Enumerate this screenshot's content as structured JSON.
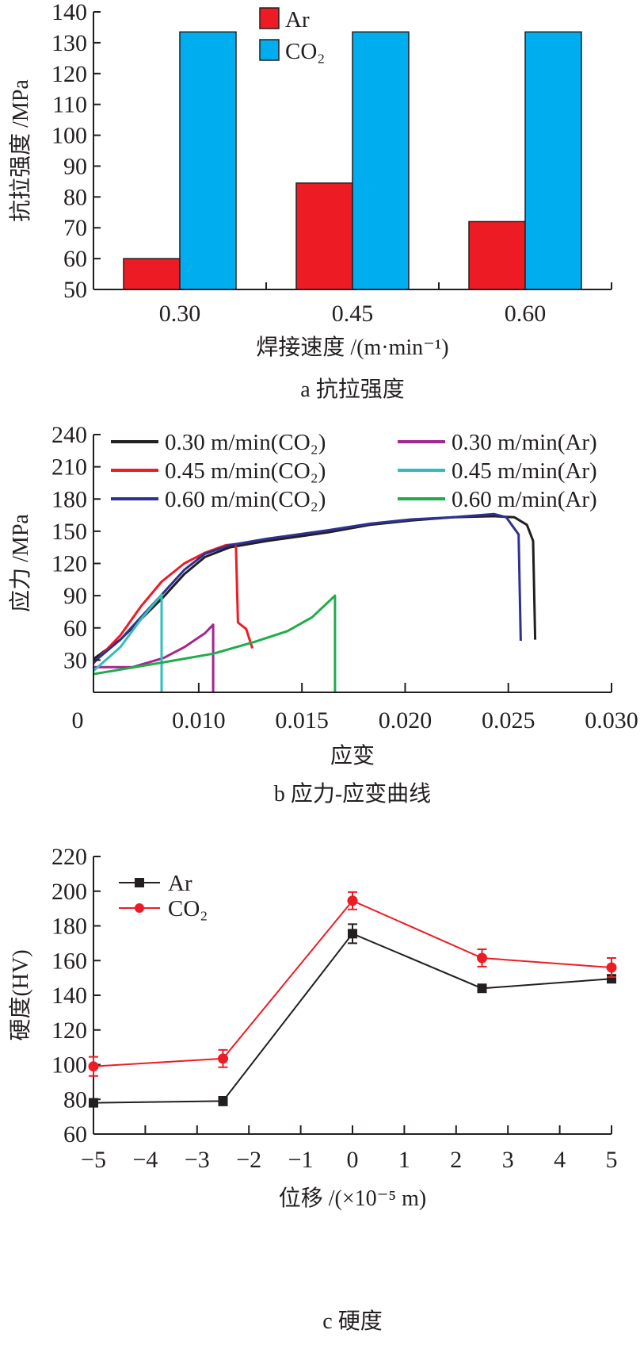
{
  "colors": {
    "ar_bar": "#ed1c24",
    "co2_bar": "#00aeef",
    "axis": "#231f20"
  },
  "chart_data": [
    {
      "type": "bar",
      "caption": "a 抗拉强度",
      "xlabel": "焊接速度 /(m·min⁻¹)",
      "ylabel": "抗拉强度 /MPa",
      "categories": [
        "0.30",
        "0.45",
        "0.60"
      ],
      "ylim": [
        50,
        140
      ],
      "yticks": [
        50,
        60,
        70,
        80,
        90,
        100,
        110,
        120,
        130,
        140
      ],
      "legend_position": "top-center",
      "series": [
        {
          "name": "Ar",
          "color": "#ed1c24",
          "values": [
            60,
            84.5,
            72
          ]
        },
        {
          "name": "CO₂",
          "color": "#00aeef",
          "values": [
            133.5,
            133.5,
            133.5
          ]
        }
      ]
    },
    {
      "type": "line",
      "caption": "b 应力-应变曲线",
      "xlabel": "应变",
      "ylabel": "应力 /MPa",
      "xlim": [
        0.0049,
        0.03
      ],
      "ylim": [
        0,
        240
      ],
      "xticks": [
        0.0049,
        0.01,
        0.015,
        0.02,
        0.025,
        0.03
      ],
      "xtick_labels": [
        "0",
        "0.010",
        "0.015",
        "0.020",
        "0.025",
        "0.030"
      ],
      "yticks": [
        30,
        60,
        90,
        120,
        150,
        180,
        210,
        240
      ],
      "legend_position": "top",
      "series": [
        {
          "name": "0.30 m/min(CO₂)",
          "color": "#231f20",
          "points": [
            [
              0.0049,
              31
            ],
            [
              0.0062,
              49
            ],
            [
              0.0083,
              89
            ],
            [
              0.0093,
              110
            ],
            [
              0.0103,
              126
            ],
            [
              0.0115,
              135
            ],
            [
              0.0133,
              141
            ],
            [
              0.0163,
              149
            ],
            [
              0.0183,
              156
            ],
            [
              0.0203,
              160
            ],
            [
              0.0223,
              163
            ],
            [
              0.0243,
              164
            ],
            [
              0.0253,
              163
            ],
            [
              0.0259,
              156
            ],
            [
              0.0262,
              141
            ],
            [
              0.0263,
              49
            ]
          ]
        },
        {
          "name": "0.45 m/min(CO₂)",
          "color": "#ed1c24",
          "points": [
            [
              0.0049,
              27
            ],
            [
              0.0062,
              53
            ],
            [
              0.0072,
              80
            ],
            [
              0.0082,
              103
            ],
            [
              0.0093,
              120
            ],
            [
              0.0103,
              130
            ],
            [
              0.0113,
              137
            ],
            [
              0.0118,
              138
            ],
            [
              0.0119,
              65
            ],
            [
              0.0123,
              59
            ],
            [
              0.0126,
              41
            ]
          ]
        },
        {
          "name": "0.60 m/min(CO₂)",
          "color": "#2e3192",
          "points": [
            [
              0.0049,
              28
            ],
            [
              0.0062,
              49
            ],
            [
              0.0083,
              93
            ],
            [
              0.0093,
              114
            ],
            [
              0.0103,
              129
            ],
            [
              0.0115,
              137
            ],
            [
              0.0133,
              143
            ],
            [
              0.0163,
              151
            ],
            [
              0.0183,
              157
            ],
            [
              0.0203,
              161
            ],
            [
              0.0223,
              163
            ],
            [
              0.0243,
              166
            ],
            [
              0.0249,
              163
            ],
            [
              0.0255,
              147
            ],
            [
              0.0256,
              48
            ]
          ]
        },
        {
          "name": "0.30 m/min(Ar)",
          "color": "#a3278f",
          "points": [
            [
              0.0049,
              23.5
            ],
            [
              0.0068,
              23.5
            ],
            [
              0.0083,
              32
            ],
            [
              0.0093,
              42
            ],
            [
              0.0103,
              55
            ],
            [
              0.0107,
              63
            ],
            [
              0.0107,
              0
            ]
          ]
        },
        {
          "name": "0.45 m/min(Ar)",
          "color": "#33bcbc",
          "points": [
            [
              0.0049,
              20
            ],
            [
              0.0062,
              42
            ],
            [
              0.0072,
              68
            ],
            [
              0.0082,
              91
            ],
            [
              0.0082,
              0
            ]
          ]
        },
        {
          "name": "0.60 m/min(Ar)",
          "color": "#1fad4b",
          "points": [
            [
              0.0049,
              17
            ],
            [
              0.0083,
              28
            ],
            [
              0.0107,
              36
            ],
            [
              0.0127,
              47
            ],
            [
              0.0143,
              57
            ],
            [
              0.0155,
              70
            ],
            [
              0.0166,
              90
            ],
            [
              0.0166,
              0
            ]
          ]
        }
      ]
    },
    {
      "type": "line",
      "caption": "c 硬度",
      "xlabel": "位移 /(×10⁻⁵ m)",
      "ylabel": "硬度(HV)",
      "xlim": [
        -5,
        5
      ],
      "ylim": [
        60,
        220
      ],
      "xticks": [
        -5,
        -4,
        -3,
        -2,
        -1,
        0,
        1,
        2,
        3,
        4,
        5
      ],
      "xtick_labels": [
        "−5",
        "−4",
        "−3",
        "−2",
        "−1",
        "0",
        "1",
        "2",
        "3",
        "4",
        "5"
      ],
      "yticks": [
        60,
        80,
        100,
        120,
        140,
        160,
        180,
        200,
        220
      ],
      "legend_position": "top-left",
      "x": [
        -5,
        -2.5,
        0,
        2.5,
        5
      ],
      "series": [
        {
          "name": "Ar",
          "color": "#231f20",
          "marker": "square",
          "values": [
            78,
            79,
            175.5,
            144,
            149.5
          ],
          "errors": [
            0.5,
            2.5,
            5.5,
            1,
            1
          ]
        },
        {
          "name": "CO₂",
          "color": "#ed1c24",
          "marker": "circle",
          "values": [
            99,
            103.5,
            194.5,
            161.5,
            156
          ],
          "errors": [
            5.5,
            5,
            5,
            5,
            5.5
          ]
        }
      ]
    }
  ]
}
